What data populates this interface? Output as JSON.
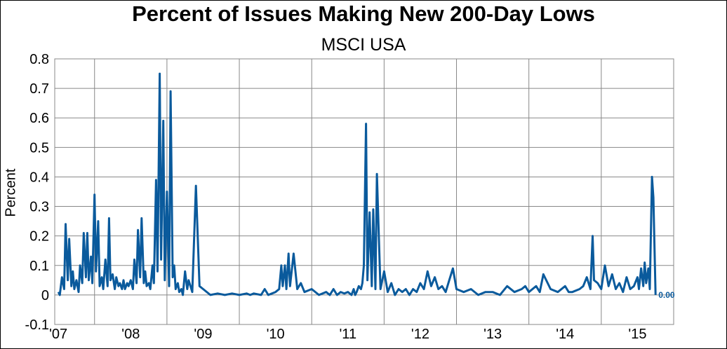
{
  "chart_data": {
    "type": "line",
    "title": "Percent of Issues Making New 200-Day Lows",
    "subtitle": "MSCI USA",
    "xlabel": "",
    "ylabel": "Percent",
    "ylim": [
      -0.1,
      0.8
    ],
    "yticks": [
      "-0.1",
      "0",
      "0.1",
      "0.2",
      "0.3",
      "0.4",
      "0.5",
      "0.6",
      "0.7",
      "0.8"
    ],
    "xticks": [
      "'07",
      "'08",
      "'09",
      "'10",
      "'11",
      "'12",
      "'13",
      "'14",
      "'15"
    ],
    "grid": true,
    "line_color": "#0a5a9c",
    "end_label": "0.00",
    "series": [
      {
        "x": [
          2007.0,
          2007.02,
          2007.05,
          2007.08,
          2007.1,
          2007.13,
          2007.15,
          2007.18,
          2007.2,
          2007.22,
          2007.25,
          2007.28,
          2007.3,
          2007.33,
          2007.35,
          2007.38,
          2007.4,
          2007.42,
          2007.45,
          2007.47,
          2007.5,
          2007.52,
          2007.55,
          2007.57,
          2007.6,
          2007.62,
          2007.65,
          2007.68,
          2007.7,
          2007.72,
          2007.75,
          2007.78,
          2007.8,
          2007.83,
          2007.85,
          2007.88,
          2007.9,
          2007.92,
          2007.95,
          2007.97,
          2008.0,
          2008.03,
          2008.05,
          2008.08,
          2008.1,
          2008.13,
          2008.15,
          2008.18,
          2008.2,
          2008.22,
          2008.25,
          2008.27,
          2008.3,
          2008.32,
          2008.35,
          2008.37,
          2008.4,
          2008.42,
          2008.45,
          2008.47,
          2008.5,
          2008.53,
          2008.55,
          2008.58,
          2008.6,
          2008.62,
          2008.65,
          2008.67,
          2008.7,
          2008.72,
          2008.75,
          2008.78,
          2008.8,
          2008.85,
          2008.9,
          2008.95,
          2009.0,
          2009.1,
          2009.2,
          2009.3,
          2009.4,
          2009.5,
          2009.6,
          2009.65,
          2009.7,
          2009.8,
          2009.85,
          2009.9,
          2009.95,
          2010.0,
          2010.05,
          2010.08,
          2010.1,
          2010.13,
          2010.15,
          2010.18,
          2010.2,
          2010.25,
          2010.3,
          2010.35,
          2010.4,
          2010.5,
          2010.6,
          2010.7,
          2010.75,
          2010.8,
          2010.85,
          2010.9,
          2010.95,
          2011.0,
          2011.05,
          2011.08,
          2011.1,
          2011.12,
          2011.15,
          2011.18,
          2011.2,
          2011.22,
          2011.25,
          2011.27,
          2011.3,
          2011.33,
          2011.35,
          2011.38,
          2011.4,
          2011.45,
          2011.5,
          2011.55,
          2011.6,
          2011.65,
          2011.7,
          2011.75,
          2011.8,
          2011.85,
          2011.9,
          2011.95,
          2012.0,
          2012.05,
          2012.1,
          2012.15,
          2012.2,
          2012.25,
          2012.3,
          2012.35,
          2012.4,
          2012.45,
          2012.5,
          2012.6,
          2012.7,
          2012.8,
          2012.9,
          2013.0,
          2013.1,
          2013.2,
          2013.3,
          2013.4,
          2013.45,
          2013.5,
          2013.6,
          2013.65,
          2013.7,
          2013.8,
          2013.9,
          2014.0,
          2014.05,
          2014.1,
          2014.2,
          2014.25,
          2014.3,
          2014.35,
          2014.38,
          2014.4,
          2014.45,
          2014.5,
          2014.55,
          2014.6,
          2014.65,
          2014.7,
          2014.75,
          2014.8,
          2014.85,
          2014.9,
          2014.95,
          2015.0,
          2015.02,
          2015.05,
          2015.08,
          2015.1,
          2015.12,
          2015.15,
          2015.17,
          2015.2,
          2015.22,
          2015.25
        ],
        "y": [
          0.01,
          0.0,
          0.06,
          0.02,
          0.24,
          0.05,
          0.19,
          0.03,
          0.08,
          0.02,
          0.05,
          0.01,
          0.1,
          0.04,
          0.21,
          0.06,
          0.21,
          0.05,
          0.13,
          0.04,
          0.34,
          0.08,
          0.25,
          0.03,
          0.06,
          0.02,
          0.12,
          0.03,
          0.26,
          0.05,
          0.07,
          0.02,
          0.06,
          0.03,
          0.04,
          0.02,
          0.05,
          0.02,
          0.04,
          0.03,
          0.05,
          0.02,
          0.12,
          0.04,
          0.22,
          0.06,
          0.26,
          0.04,
          0.08,
          0.03,
          0.04,
          0.02,
          0.1,
          0.04,
          0.39,
          0.08,
          0.75,
          0.12,
          0.59,
          0.05,
          0.35,
          0.03,
          0.69,
          0.06,
          0.1,
          0.02,
          0.04,
          0.01,
          0.02,
          0.0,
          0.08,
          0.02,
          0.05,
          0.01,
          0.37,
          0.03,
          0.02,
          0.0,
          0.005,
          0.0,
          0.005,
          0.0,
          0.005,
          0.0,
          0.005,
          0.0,
          0.02,
          0.0,
          0.005,
          0.01,
          0.02,
          0.1,
          0.03,
          0.1,
          0.02,
          0.14,
          0.03,
          0.14,
          0.02,
          0.04,
          0.01,
          0.02,
          0.0,
          0.01,
          0.0,
          0.02,
          0.0,
          0.01,
          0.005,
          0.01,
          0.0,
          0.02,
          0.0,
          0.01,
          0.03,
          0.02,
          0.04,
          0.1,
          0.58,
          0.05,
          0.28,
          0.03,
          0.29,
          0.02,
          0.41,
          0.02,
          0.08,
          0.01,
          0.04,
          0.0,
          0.02,
          0.01,
          0.02,
          0.0,
          0.02,
          0.01,
          0.04,
          0.02,
          0.08,
          0.03,
          0.06,
          0.02,
          0.03,
          0.01,
          0.05,
          0.09,
          0.02,
          0.01,
          0.02,
          0.0,
          0.01,
          0.01,
          0.0,
          0.03,
          0.01,
          0.02,
          0.03,
          0.01,
          0.03,
          0.01,
          0.07,
          0.02,
          0.01,
          0.03,
          0.01,
          0.01,
          0.02,
          0.03,
          0.06,
          0.02,
          0.2,
          0.05,
          0.04,
          0.02,
          0.1,
          0.03,
          0.07,
          0.02,
          0.04,
          0.01,
          0.06,
          0.02,
          0.03,
          0.06,
          0.02,
          0.09,
          0.03,
          0.11,
          0.04,
          0.09,
          0.02,
          0.4,
          0.33,
          0.0
        ]
      }
    ]
  }
}
